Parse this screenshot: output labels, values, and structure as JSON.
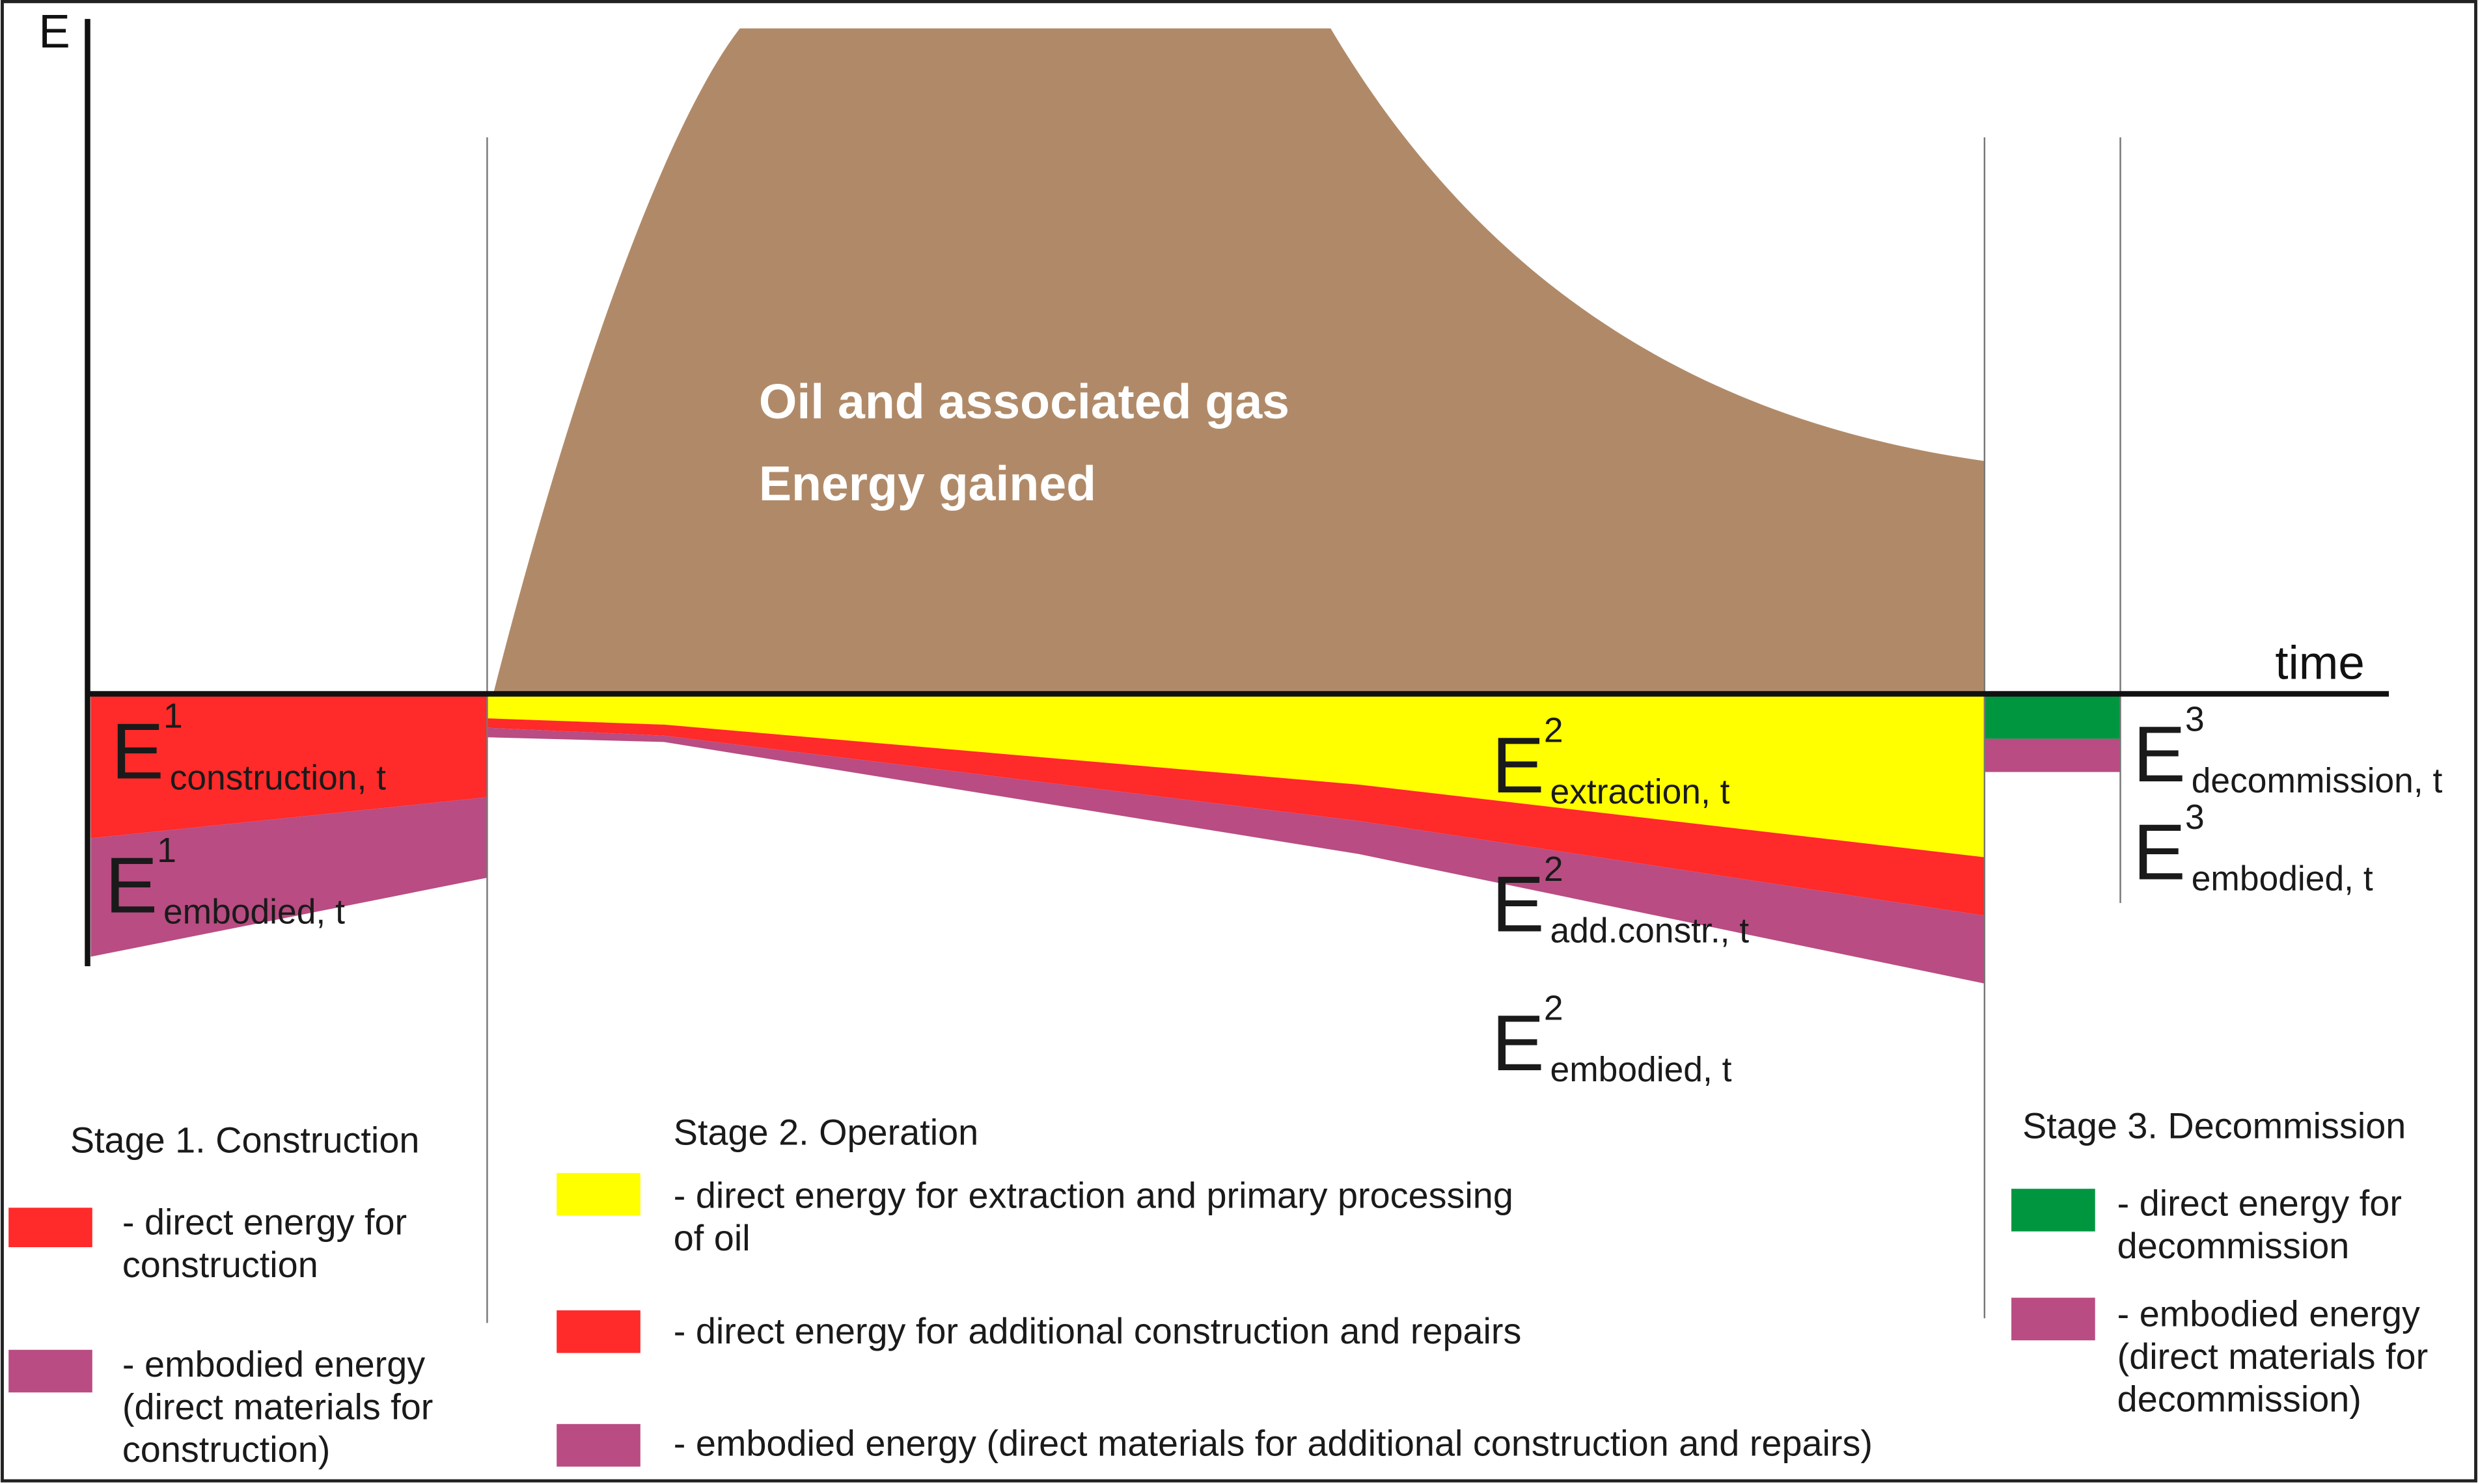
{
  "axis": {
    "y_label": "E",
    "x_label": "time"
  },
  "main_area": {
    "line1": "Oil and associated gas",
    "line2": "Energy gained"
  },
  "energy_labels": [
    {
      "symbol": "E",
      "sup": "1",
      "sub": "construction, t"
    },
    {
      "symbol": "E",
      "sup": "1",
      "sub": "embodied, t"
    },
    {
      "symbol": "E",
      "sup": "2",
      "sub": "extraction, t"
    },
    {
      "symbol": "E",
      "sup": "2",
      "sub": "add.constr., t"
    },
    {
      "symbol": "E",
      "sup": "2",
      "sub": "embodied, t"
    },
    {
      "symbol": "E",
      "sup": "3",
      "sub": "decommission, t"
    },
    {
      "symbol": "E",
      "sup": "3",
      "sub": "embodied, t"
    }
  ],
  "stages": [
    {
      "title": "Stage 1. Construction",
      "legend": [
        {
          "lines": [
            "- direct energy for",
            "construction"
          ]
        },
        {
          "lines": [
            "- embodied energy",
            "(direct materials for",
            "construction)"
          ]
        }
      ]
    },
    {
      "title": "Stage 2. Operation",
      "legend": [
        {
          "lines": [
            "- direct energy for extraction and primary processing",
            "of oil"
          ]
        },
        {
          "lines": [
            "- direct energy for additional construction and repairs"
          ]
        },
        {
          "lines": [
            "- embodied energy (direct materials for additional construction and repairs)"
          ]
        }
      ]
    },
    {
      "title": "Stage 3. Decommission",
      "legend": [
        {
          "lines": [
            "- direct energy for",
            "decommission"
          ]
        },
        {
          "lines": [
            "- embodied energy",
            "(direct materials for",
            "decommission)"
          ]
        }
      ]
    }
  ]
}
